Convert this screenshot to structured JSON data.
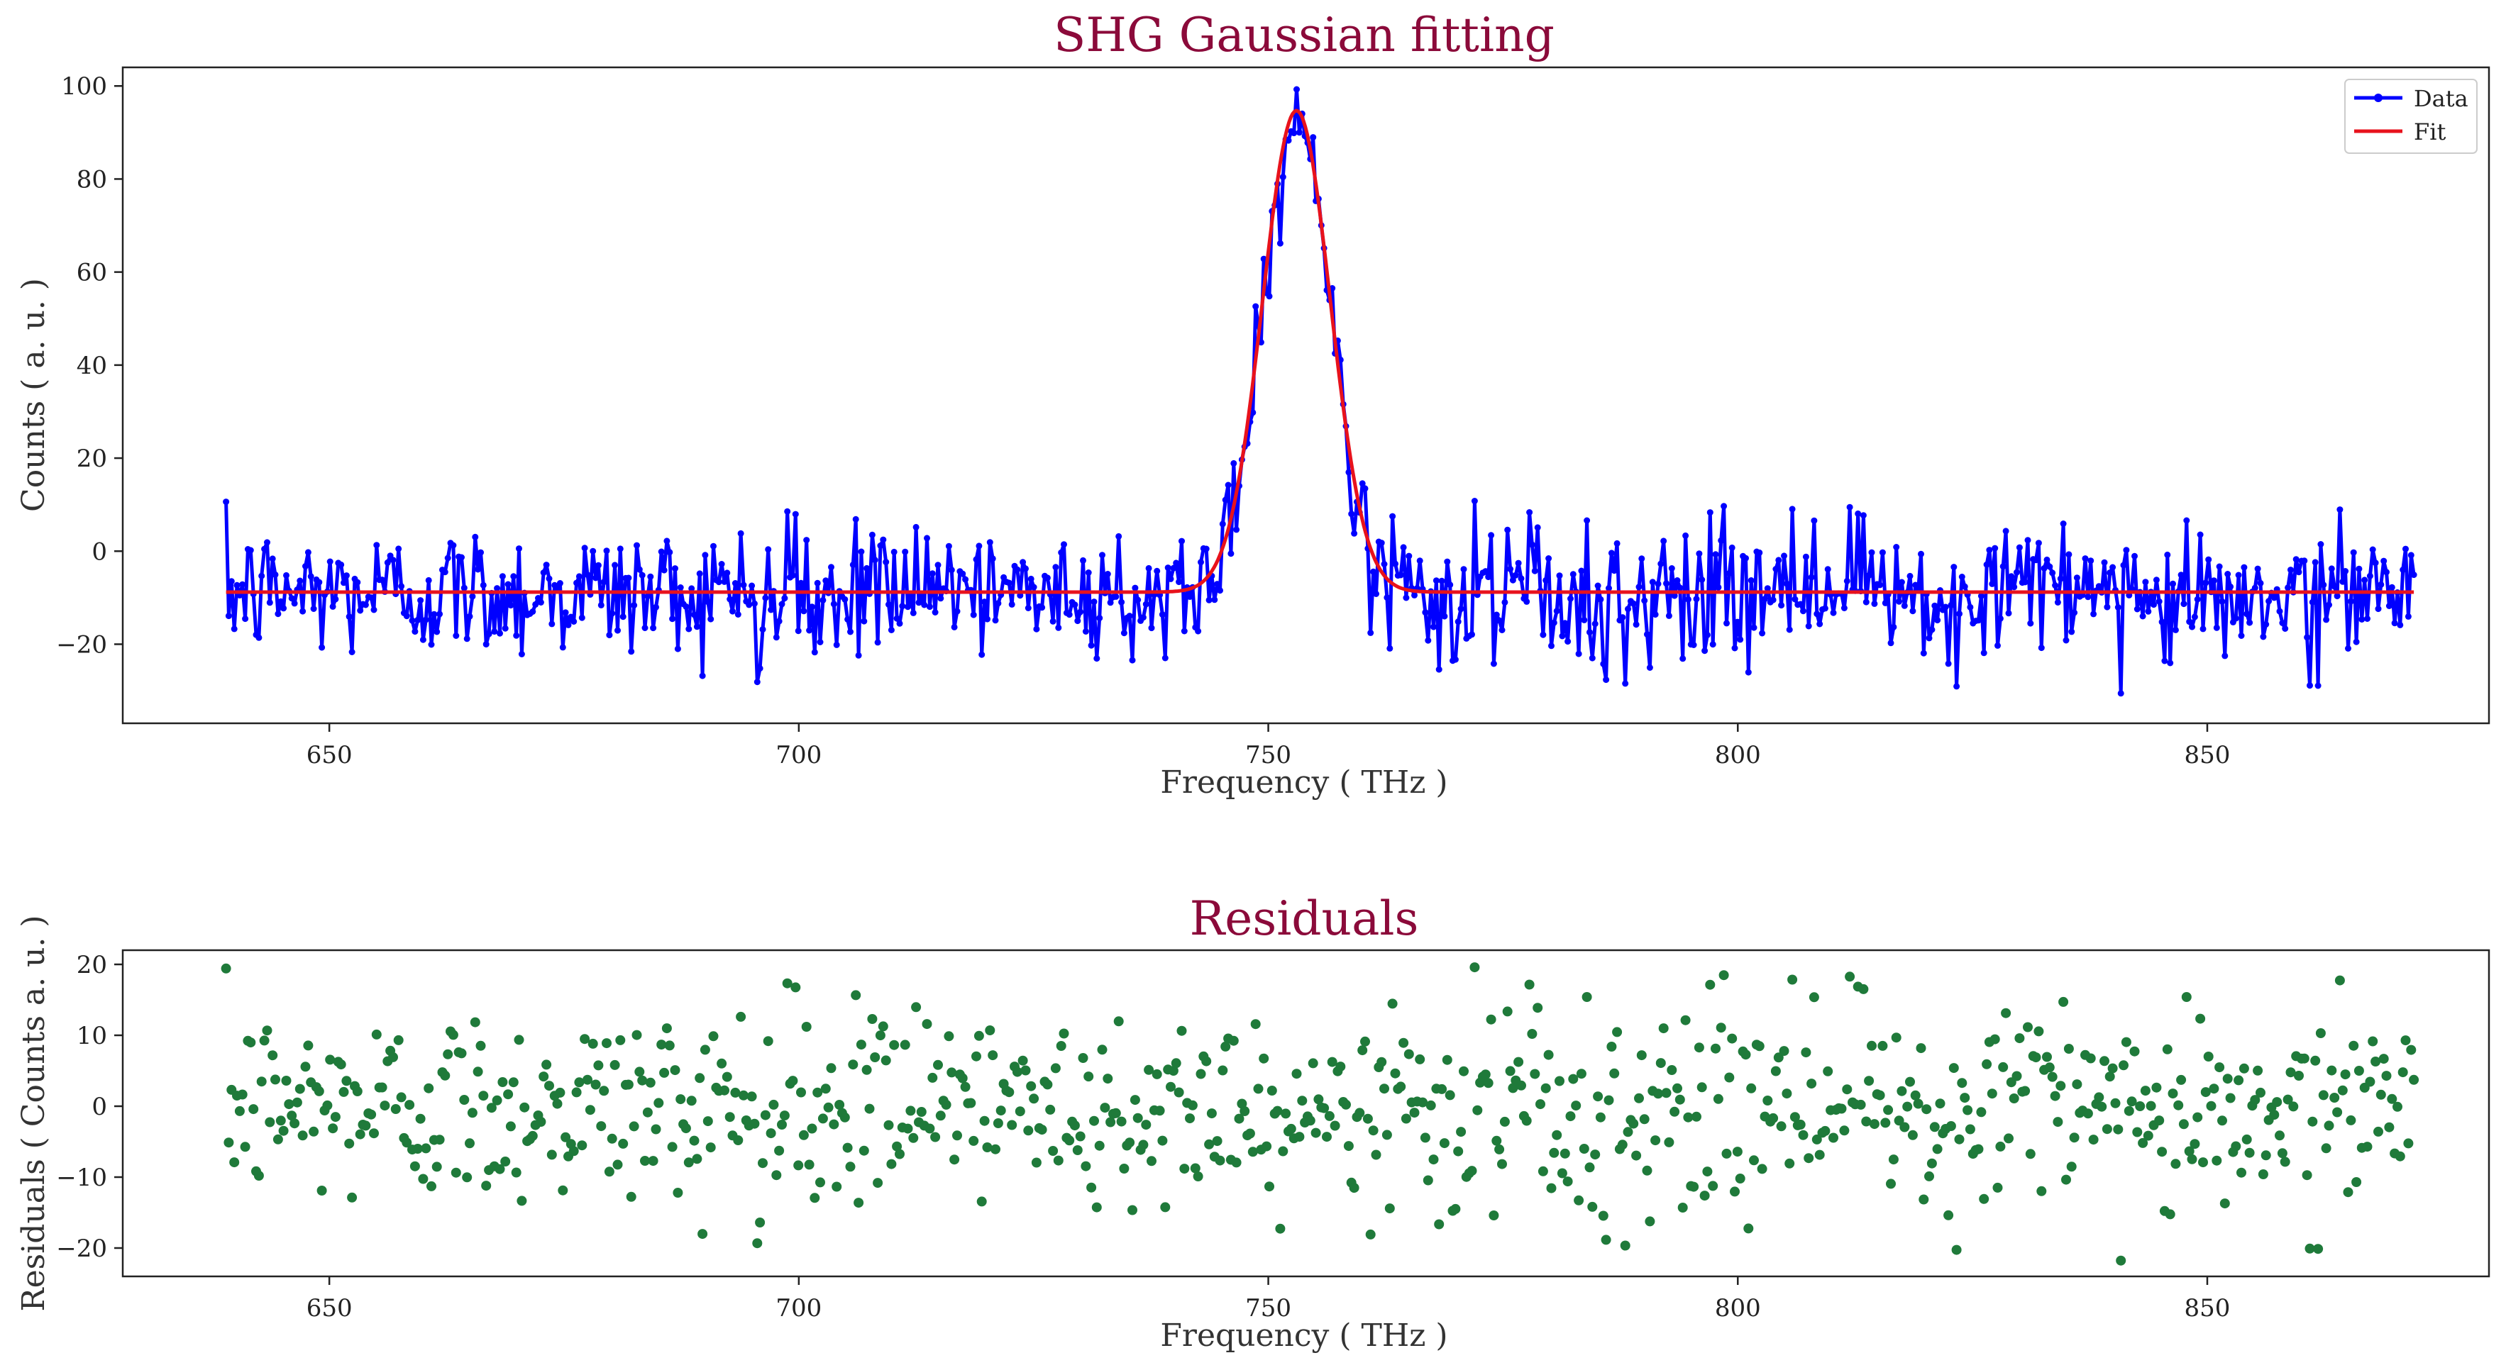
{
  "chart_data": [
    {
      "type": "line",
      "title": "SHG Gaussian fitting",
      "xlabel": "Frequency ( THz )",
      "ylabel": "Counts ( a. u. )",
      "xlim": [
        628,
        880
      ],
      "ylim": [
        -37,
        104
      ],
      "xticks": [
        650,
        700,
        750,
        800,
        850
      ],
      "yticks": [
        -20,
        0,
        20,
        40,
        60,
        80,
        100
      ],
      "grid": false,
      "legend_position": "top-right",
      "series": [
        {
          "name": "Data",
          "color": "#0000ff",
          "marker": "circle",
          "x_start": 639,
          "x_end": 872,
          "n_points": 800,
          "noise_sd": 7,
          "note": "Noisy measurement around baseline -9 with Gaussian peak near 753 THz",
          "seed": 12345
        },
        {
          "name": "Fit",
          "color": "#e8121c",
          "model": "gaussian",
          "baseline": -8.8,
          "amplitude": 103.5,
          "center": 753.0,
          "sigma": 3.6,
          "x_start": 639,
          "x_end": 872
        }
      ]
    },
    {
      "type": "scatter",
      "title": "Residuals",
      "xlabel": "Frequency ( THz )",
      "ylabel": "Residuals ( Counts a. u. )",
      "xlim": [
        628,
        880
      ],
      "ylim": [
        -24,
        22
      ],
      "xticks": [
        650,
        700,
        750,
        800,
        850
      ],
      "yticks": [
        -20,
        -10,
        0,
        10,
        20
      ],
      "grid": false,
      "series": [
        {
          "name": "Residuals",
          "color": "#1f7a3a",
          "derived_from": "Data minus Fit",
          "min": -22,
          "max": 19.8
        }
      ]
    }
  ]
}
